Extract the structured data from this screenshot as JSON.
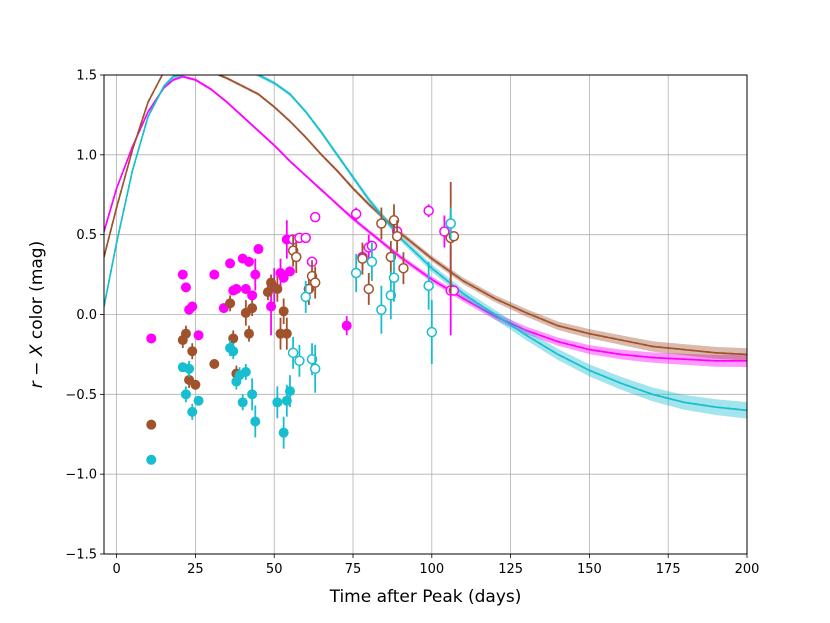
{
  "chart_data": {
    "type": "scatter",
    "title": "",
    "xlabel": "Time after Peak (days)",
    "ylabel": "r − X color (mag)",
    "ylabel_parts": {
      "var1": "r",
      "op": " − ",
      "var2": "X",
      "rest": " color (mag)"
    },
    "xlim": [
      -4,
      200
    ],
    "ylim": [
      -1.5,
      1.5
    ],
    "xticks": [
      0,
      25,
      50,
      75,
      100,
      125,
      150,
      175,
      200
    ],
    "yticks": [
      -1.5,
      -1.0,
      -0.5,
      0.0,
      0.5,
      1.0,
      1.5
    ],
    "xtick_labels": [
      "0",
      "25",
      "50",
      "75",
      "100",
      "125",
      "150",
      "175",
      "200"
    ],
    "ytick_labels": [
      "−1.5",
      "−1.0",
      "−0.5",
      "0.0",
      "0.5",
      "1.0",
      "1.5"
    ],
    "grid": true,
    "colors": {
      "magenta": "#ff00ff",
      "brown": "#a0522d",
      "cyan": "#17becf"
    },
    "series": [
      {
        "name": "magenta",
        "color": "#ff00ff",
        "model": {
          "x": [
            -4,
            0,
            5,
            10,
            15,
            18,
            21,
            25,
            30,
            35,
            40,
            45,
            50,
            55,
            60,
            65,
            70,
            75,
            80,
            85,
            90,
            100,
            110,
            120,
            130,
            140,
            150,
            160,
            170,
            180,
            190,
            200
          ],
          "y": [
            0.52,
            0.79,
            1.05,
            1.27,
            1.42,
            1.47,
            1.49,
            1.47,
            1.41,
            1.33,
            1.24,
            1.15,
            1.06,
            0.96,
            0.87,
            0.78,
            0.69,
            0.6,
            0.52,
            0.44,
            0.36,
            0.22,
            0.1,
            -0.01,
            -0.1,
            -0.17,
            -0.22,
            -0.25,
            -0.27,
            -0.28,
            -0.29,
            -0.29
          ],
          "band": 0.03
        },
        "filled_points": [
          {
            "x": 11,
            "y": -0.15,
            "err": 0.0
          },
          {
            "x": 21,
            "y": 0.25,
            "err": 0.0
          },
          {
            "x": 22,
            "y": 0.17,
            "err": 0.0
          },
          {
            "x": 23,
            "y": 0.03,
            "err": 0.0
          },
          {
            "x": 24,
            "y": 0.05,
            "err": 0.0
          },
          {
            "x": 26,
            "y": -0.13,
            "err": 0.0
          },
          {
            "x": 31,
            "y": 0.25,
            "err": 0.0
          },
          {
            "x": 34,
            "y": 0.04,
            "err": 0.0
          },
          {
            "x": 36,
            "y": 0.32,
            "err": 0.0
          },
          {
            "x": 37,
            "y": 0.15,
            "err": 0.0
          },
          {
            "x": 38,
            "y": 0.16,
            "err": 0.0
          },
          {
            "x": 40,
            "y": 0.35,
            "err": 0.0
          },
          {
            "x": 41,
            "y": 0.16,
            "err": 0.0
          },
          {
            "x": 42,
            "y": 0.33,
            "err": 0.0
          },
          {
            "x": 43,
            "y": 0.12,
            "err": 0.0
          },
          {
            "x": 44,
            "y": 0.25,
            "err": 0.1
          },
          {
            "x": 45,
            "y": 0.41,
            "err": 0.0
          },
          {
            "x": 49,
            "y": 0.05,
            "err": 0.18
          },
          {
            "x": 50,
            "y": 0.17,
            "err": 0.12
          },
          {
            "x": 52,
            "y": 0.26,
            "err": 0.09
          },
          {
            "x": 53,
            "y": 0.23,
            "err": 0.0
          },
          {
            "x": 54,
            "y": 0.47,
            "err": 0.12
          },
          {
            "x": 55,
            "y": 0.27,
            "err": 0.0
          },
          {
            "x": 73,
            "y": -0.07,
            "err": 0.06
          }
        ],
        "open_points": [
          {
            "x": 56,
            "y": 0.47,
            "err": 0.0
          },
          {
            "x": 58,
            "y": 0.48,
            "err": 0.0
          },
          {
            "x": 60,
            "y": 0.48,
            "err": 0.0
          },
          {
            "x": 62,
            "y": 0.33,
            "err": 0.0
          },
          {
            "x": 63,
            "y": 0.61,
            "err": 0.0
          },
          {
            "x": 76,
            "y": 0.63,
            "err": 0.04
          },
          {
            "x": 78,
            "y": 0.36,
            "err": 0.08
          },
          {
            "x": 80,
            "y": 0.42,
            "err": 0.08
          },
          {
            "x": 81,
            "y": 0.43,
            "err": 0.0
          },
          {
            "x": 89,
            "y": 0.52,
            "err": 0.0
          },
          {
            "x": 99,
            "y": 0.65,
            "err": 0.04
          },
          {
            "x": 104,
            "y": 0.52,
            "err": 0.1
          },
          {
            "x": 106,
            "y": 0.15,
            "err": 0.28
          },
          {
            "x": 107,
            "y": 0.15,
            "err": 0.0
          }
        ]
      },
      {
        "name": "brown",
        "color": "#a0522d",
        "model": {
          "x": [
            -4,
            0,
            5,
            10,
            15,
            18,
            21,
            25,
            30,
            35,
            40,
            45,
            50,
            55,
            60,
            65,
            70,
            75,
            80,
            85,
            90,
            100,
            110,
            120,
            130,
            140,
            150,
            160,
            170,
            180,
            190,
            200
          ],
          "y": [
            0.36,
            0.67,
            1.03,
            1.33,
            1.52,
            1.57,
            1.57,
            1.55,
            1.52,
            1.48,
            1.43,
            1.38,
            1.3,
            1.21,
            1.11,
            1.0,
            0.9,
            0.79,
            0.69,
            0.6,
            0.51,
            0.35,
            0.21,
            0.1,
            0.01,
            -0.07,
            -0.12,
            -0.16,
            -0.2,
            -0.22,
            -0.24,
            -0.25
          ],
          "band": 0.03
        },
        "filled_points": [
          {
            "x": 11,
            "y": -0.69,
            "err": 0.0
          },
          {
            "x": 21,
            "y": -0.16,
            "err": 0.05
          },
          {
            "x": 22,
            "y": -0.12,
            "err": 0.05
          },
          {
            "x": 23,
            "y": -0.41,
            "err": 0.05
          },
          {
            "x": 24,
            "y": -0.23,
            "err": 0.05
          },
          {
            "x": 25,
            "y": -0.44,
            "err": 0.0
          },
          {
            "x": 31,
            "y": -0.31,
            "err": 0.0
          },
          {
            "x": 36,
            "y": 0.07,
            "err": 0.05
          },
          {
            "x": 37,
            "y": -0.15,
            "err": 0.05
          },
          {
            "x": 38,
            "y": -0.37,
            "err": 0.05
          },
          {
            "x": 41,
            "y": 0.01,
            "err": 0.08
          },
          {
            "x": 42,
            "y": -0.12,
            "err": 0.05
          },
          {
            "x": 43,
            "y": 0.04,
            "err": 0.05
          },
          {
            "x": 48,
            "y": 0.14,
            "err": 0.05
          },
          {
            "x": 49,
            "y": 0.2,
            "err": 0.05
          },
          {
            "x": 51,
            "y": 0.16,
            "err": 0.08
          },
          {
            "x": 52,
            "y": -0.12,
            "err": 0.1
          },
          {
            "x": 53,
            "y": 0.02,
            "err": 0.08
          },
          {
            "x": 54,
            "y": -0.12,
            "err": 0.1
          }
        ],
        "open_points": [
          {
            "x": 56,
            "y": 0.4,
            "err": 0.1
          },
          {
            "x": 57,
            "y": 0.36,
            "err": 0.1
          },
          {
            "x": 61,
            "y": 0.16,
            "err": 0.1
          },
          {
            "x": 62,
            "y": 0.24,
            "err": 0.1
          },
          {
            "x": 63,
            "y": 0.2,
            "err": 0.1
          },
          {
            "x": 78,
            "y": 0.35,
            "err": 0.1
          },
          {
            "x": 80,
            "y": 0.16,
            "err": 0.1
          },
          {
            "x": 84,
            "y": 0.57,
            "err": 0.1
          },
          {
            "x": 87,
            "y": 0.36,
            "err": 0.1
          },
          {
            "x": 88,
            "y": 0.59,
            "err": 0.1
          },
          {
            "x": 89,
            "y": 0.49,
            "err": 0.1
          },
          {
            "x": 91,
            "y": 0.29,
            "err": 0.1
          },
          {
            "x": 106,
            "y": 0.48,
            "err": 0.35
          },
          {
            "x": 107,
            "y": 0.49,
            "err": 0.0
          }
        ]
      },
      {
        "name": "cyan",
        "color": "#17becf",
        "model": {
          "x": [
            -4,
            0,
            5,
            10,
            15,
            18,
            21,
            25,
            30,
            35,
            40,
            45,
            50,
            55,
            60,
            65,
            70,
            75,
            80,
            85,
            90,
            100,
            110,
            120,
            130,
            140,
            150,
            160,
            170,
            180,
            190,
            200
          ],
          "y": [
            0.05,
            0.45,
            0.9,
            1.24,
            1.43,
            1.49,
            1.5,
            1.58,
            1.58,
            1.57,
            1.54,
            1.5,
            1.45,
            1.38,
            1.27,
            1.14,
            1.0,
            0.86,
            0.72,
            0.6,
            0.48,
            0.29,
            0.13,
            0.0,
            -0.13,
            -0.25,
            -0.35,
            -0.43,
            -0.5,
            -0.55,
            -0.58,
            -0.6
          ],
          "band": 0.04
        },
        "filled_points": [
          {
            "x": 11,
            "y": -0.91,
            "err": 0.0
          },
          {
            "x": 21,
            "y": -0.33,
            "err": 0.0
          },
          {
            "x": 22,
            "y": -0.5,
            "err": 0.05
          },
          {
            "x": 23,
            "y": -0.34,
            "err": 0.05
          },
          {
            "x": 24,
            "y": -0.61,
            "err": 0.05
          },
          {
            "x": 26,
            "y": -0.54,
            "err": 0.0
          },
          {
            "x": 36,
            "y": -0.21,
            "err": 0.05
          },
          {
            "x": 37,
            "y": -0.23,
            "err": 0.05
          },
          {
            "x": 38,
            "y": -0.42,
            "err": 0.05
          },
          {
            "x": 39,
            "y": -0.38,
            "err": 0.05
          },
          {
            "x": 40,
            "y": -0.55,
            "err": 0.05
          },
          {
            "x": 41,
            "y": -0.36,
            "err": 0.05
          },
          {
            "x": 43,
            "y": -0.5,
            "err": 0.1
          },
          {
            "x": 44,
            "y": -0.67,
            "err": 0.1
          },
          {
            "x": 51,
            "y": -0.55,
            "err": 0.1
          },
          {
            "x": 53,
            "y": -0.74,
            "err": 0.1
          },
          {
            "x": 54,
            "y": -0.54,
            "err": 0.1
          },
          {
            "x": 55,
            "y": -0.48,
            "err": 0.1
          }
        ],
        "open_points": [
          {
            "x": 56,
            "y": -0.24,
            "err": 0.1
          },
          {
            "x": 58,
            "y": -0.29,
            "err": 0.1
          },
          {
            "x": 60,
            "y": 0.11,
            "err": 0.1
          },
          {
            "x": 62,
            "y": -0.28,
            "err": 0.1
          },
          {
            "x": 63,
            "y": -0.34,
            "err": 0.15
          },
          {
            "x": 76,
            "y": 0.26,
            "err": 0.12
          },
          {
            "x": 81,
            "y": 0.33,
            "err": 0.12
          },
          {
            "x": 84,
            "y": 0.03,
            "err": 0.15
          },
          {
            "x": 87,
            "y": 0.12,
            "err": 0.15
          },
          {
            "x": 88,
            "y": 0.23,
            "err": 0.15
          },
          {
            "x": 99,
            "y": 0.18,
            "err": 0.15
          },
          {
            "x": 100,
            "y": -0.11,
            "err": 0.2
          },
          {
            "x": 106,
            "y": 0.57,
            "err": 0.1
          }
        ]
      }
    ]
  }
}
